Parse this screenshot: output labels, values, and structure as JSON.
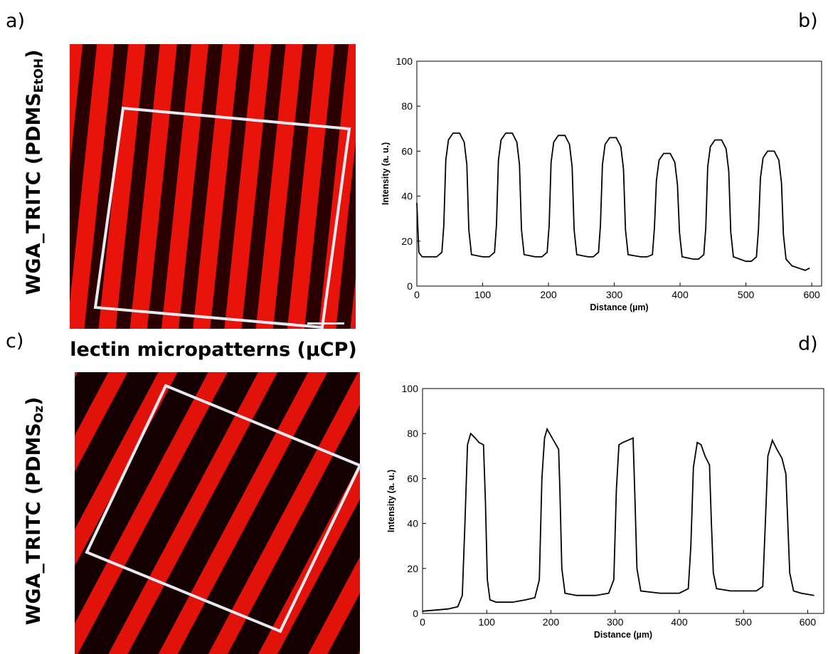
{
  "panel_labels": [
    "a)",
    "b)",
    "c)",
    "d)"
  ],
  "column_title": "lectin micropatterns (μCP)",
  "row_labels": [
    {
      "main": "WGA_TRITC (PDMS",
      "sub": "EtOH",
      "end": ")"
    },
    {
      "main": "WGA_TRITC (PDMS",
      "sub": "Oz",
      "end": ")"
    }
  ],
  "chart_data": [
    {
      "type": "line",
      "xlabel": "Distance (µm)",
      "ylabel": "Intensity (a. u.)",
      "color": "#000000",
      "xlim": [
        0,
        615
      ],
      "ylim": [
        0,
        100
      ],
      "xticks": [
        0,
        100,
        200,
        300,
        400,
        500,
        600
      ],
      "yticks": [
        0,
        20,
        40,
        60,
        80,
        100
      ],
      "grid": false,
      "x": [
        0,
        3,
        8,
        20,
        30,
        38,
        41,
        44,
        48,
        55,
        65,
        72,
        76,
        79,
        83,
        100,
        110,
        118,
        121,
        124,
        128,
        135,
        145,
        152,
        156,
        159,
        163,
        180,
        190,
        198,
        201,
        204,
        208,
        215,
        225,
        232,
        236,
        239,
        243,
        260,
        268,
        276,
        279,
        282,
        286,
        293,
        303,
        310,
        314,
        317,
        321,
        340,
        350,
        358,
        361,
        364,
        368,
        375,
        385,
        392,
        396,
        399,
        403,
        420,
        428,
        436,
        439,
        442,
        446,
        453,
        463,
        470,
        474,
        477,
        481,
        500,
        508,
        516,
        519,
        522,
        526,
        533,
        543,
        550,
        554,
        557,
        561,
        570,
        580,
        590,
        597
      ],
      "values": [
        37,
        15,
        13,
        13,
        13,
        15,
        27,
        56,
        65,
        68,
        68,
        64,
        54,
        25,
        14,
        13,
        13,
        15,
        27,
        56,
        65,
        68,
        68,
        64,
        54,
        25,
        14,
        13,
        13,
        15,
        27,
        55,
        64,
        67,
        67,
        63,
        53,
        25,
        14,
        13,
        13,
        15,
        27,
        54,
        63,
        66,
        66,
        62,
        52,
        25,
        14,
        13,
        13,
        14,
        26,
        47,
        56,
        59,
        59,
        55,
        45,
        24,
        13,
        12,
        12,
        14,
        26,
        53,
        62,
        65,
        65,
        61,
        51,
        24,
        13,
        11,
        11,
        13,
        25,
        48,
        57,
        60,
        60,
        56,
        46,
        23,
        12,
        9,
        8,
        7,
        8
      ]
    },
    {
      "type": "line",
      "xlabel": "Distance (µm)",
      "ylabel": "Intensity (a. u.)",
      "color": "#000000",
      "xlim": [
        0,
        625
      ],
      "ylim": [
        0,
        100
      ],
      "xticks": [
        0,
        100,
        200,
        300,
        400,
        500,
        600
      ],
      "yticks": [
        0,
        20,
        40,
        60,
        80,
        100
      ],
      "grid": false,
      "x": [
        0,
        20,
        40,
        55,
        62,
        66,
        70,
        75,
        82,
        88,
        95,
        98,
        101,
        105,
        115,
        140,
        160,
        175,
        182,
        186,
        190,
        194,
        200,
        206,
        212,
        214,
        217,
        222,
        240,
        270,
        290,
        298,
        302,
        306,
        312,
        320,
        328,
        331,
        334,
        340,
        370,
        400,
        414,
        418,
        422,
        428,
        434,
        440,
        447,
        450,
        453,
        458,
        480,
        520,
        530,
        534,
        538,
        545,
        552,
        560,
        566,
        569,
        572,
        578,
        590,
        610
      ],
      "values": [
        1,
        1.5,
        2,
        3,
        8,
        40,
        75,
        80,
        78,
        76,
        75,
        50,
        15,
        6,
        5,
        5,
        6,
        7,
        15,
        60,
        78,
        82,
        79,
        76,
        73,
        55,
        20,
        9,
        8,
        8,
        9,
        15,
        55,
        75,
        76,
        77,
        78,
        50,
        20,
        10,
        9,
        9,
        11,
        30,
        65,
        76,
        75,
        70,
        66,
        40,
        18,
        11,
        10,
        10,
        12,
        40,
        70,
        77,
        73,
        69,
        62,
        40,
        18,
        10,
        9,
        8
      ]
    }
  ]
}
